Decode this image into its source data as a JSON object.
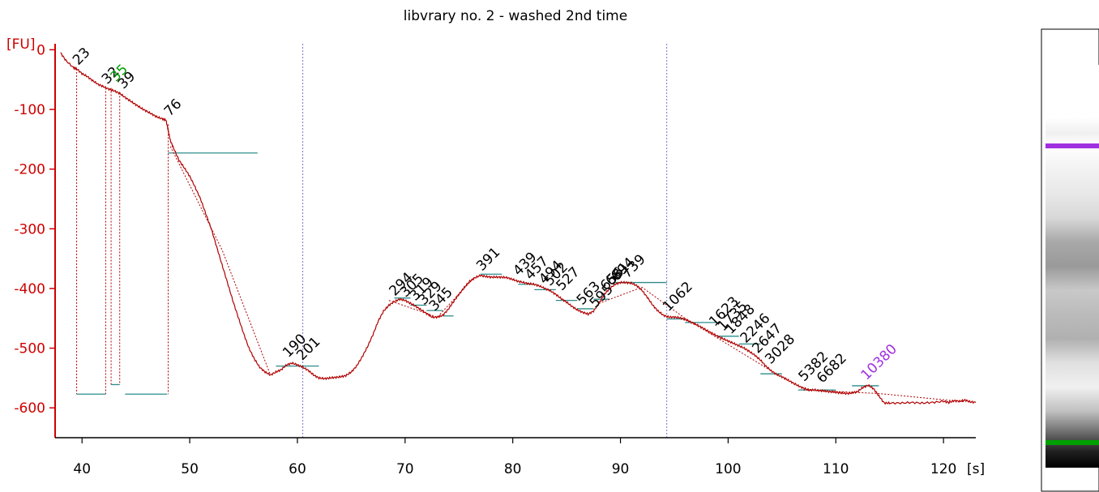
{
  "chart_data": {
    "type": "line",
    "title": "libvrary no. 2 - washed 2nd time",
    "xlabel": "[s]",
    "ylabel": "[FU]",
    "xlim": [
      37.5,
      123
    ],
    "ylim": [
      -650,
      10
    ],
    "x_ticks": [
      40,
      50,
      60,
      70,
      80,
      90,
      100,
      110,
      120
    ],
    "x_tick_labels": [
      "40",
      "50",
      "60",
      "70",
      "80",
      "90",
      "100",
      "110",
      "120"
    ],
    "y_ticks": [
      0,
      -100,
      -200,
      -300,
      -400,
      -500,
      -600
    ],
    "y_tick_labels": [
      "0",
      "-100",
      "-200",
      "-300",
      "-400",
      "-500",
      "-600"
    ],
    "marker_lines_x": [
      60.5,
      94.3
    ],
    "colors": {
      "trace": "#b00000",
      "axis": "#d00000",
      "baseline": "#2e8b8b",
      "marker": "#7777cc",
      "lower_marker": "#00a000",
      "upper_marker": "#a030e0"
    },
    "series": [
      {
        "values": [
          [
            38.0,
            -5
          ],
          [
            38.5,
            -18
          ],
          [
            39.2,
            -30
          ],
          [
            39.5,
            -32
          ],
          [
            40,
            -40
          ],
          [
            40.5,
            -45
          ],
          [
            41,
            -52
          ],
          [
            41.5,
            -58
          ],
          [
            42,
            -62
          ],
          [
            42.5,
            -66
          ],
          [
            43,
            -69
          ],
          [
            43.5,
            -73
          ],
          [
            44,
            -80
          ],
          [
            44.5,
            -86
          ],
          [
            45,
            -92
          ],
          [
            45.5,
            -98
          ],
          [
            46,
            -103
          ],
          [
            46.5,
            -108
          ],
          [
            47,
            -113
          ],
          [
            47.5,
            -116
          ],
          [
            47.8,
            -118
          ],
          [
            48.0,
            -135
          ],
          [
            48.2,
            -152
          ],
          [
            48.5,
            -165
          ],
          [
            49,
            -185
          ],
          [
            49.5,
            -198
          ],
          [
            50,
            -212
          ],
          [
            50.5,
            -230
          ],
          [
            51,
            -250
          ],
          [
            51.5,
            -275
          ],
          [
            52,
            -300
          ],
          [
            52.5,
            -330
          ],
          [
            53,
            -360
          ],
          [
            53.5,
            -390
          ],
          [
            54,
            -420
          ],
          [
            54.5,
            -448
          ],
          [
            55,
            -475
          ],
          [
            55.5,
            -500
          ],
          [
            56,
            -518
          ],
          [
            56.5,
            -532
          ],
          [
            57,
            -540
          ],
          [
            57.5,
            -545
          ],
          [
            58,
            -540
          ],
          [
            58.5,
            -536
          ],
          [
            59,
            -528
          ],
          [
            59.5,
            -525
          ],
          [
            60,
            -528
          ],
          [
            60.5,
            -532
          ],
          [
            61,
            -537
          ],
          [
            61.5,
            -545
          ],
          [
            62,
            -550
          ],
          [
            62.5,
            -551
          ],
          [
            63,
            -550
          ],
          [
            63.5,
            -549
          ],
          [
            64,
            -548
          ],
          [
            64.5,
            -546
          ],
          [
            65,
            -540
          ],
          [
            65.5,
            -530
          ],
          [
            66,
            -515
          ],
          [
            66.5,
            -498
          ],
          [
            67,
            -478
          ],
          [
            67.5,
            -455
          ],
          [
            68,
            -438
          ],
          [
            68.5,
            -428
          ],
          [
            69,
            -422
          ],
          [
            69.5,
            -418
          ],
          [
            70,
            -420
          ],
          [
            70.5,
            -425
          ],
          [
            71,
            -430
          ],
          [
            71.5,
            -436
          ],
          [
            72,
            -442
          ],
          [
            72.5,
            -448
          ],
          [
            73,
            -448
          ],
          [
            73.5,
            -445
          ],
          [
            74,
            -435
          ],
          [
            74.5,
            -422
          ],
          [
            75,
            -410
          ],
          [
            75.5,
            -398
          ],
          [
            76,
            -388
          ],
          [
            76.5,
            -382
          ],
          [
            77,
            -378
          ],
          [
            77.5,
            -380
          ],
          [
            78,
            -381
          ],
          [
            78.5,
            -381
          ],
          [
            79,
            -381
          ],
          [
            79.5,
            -382
          ],
          [
            80,
            -385
          ],
          [
            80.5,
            -388
          ],
          [
            81,
            -390
          ],
          [
            81.5,
            -392
          ],
          [
            82,
            -393
          ],
          [
            82.5,
            -396
          ],
          [
            83,
            -400
          ],
          [
            83.5,
            -404
          ],
          [
            84,
            -410
          ],
          [
            84.5,
            -417
          ],
          [
            85,
            -423
          ],
          [
            85.5,
            -430
          ],
          [
            86,
            -436
          ],
          [
            86.5,
            -440
          ],
          [
            87,
            -443
          ],
          [
            87.5,
            -438
          ],
          [
            88,
            -425
          ],
          [
            88.5,
            -410
          ],
          [
            89,
            -400
          ],
          [
            89.5,
            -393
          ],
          [
            90,
            -390
          ],
          [
            90.5,
            -390
          ],
          [
            91,
            -391
          ],
          [
            91.5,
            -395
          ],
          [
            92,
            -403
          ],
          [
            92.5,
            -415
          ],
          [
            93,
            -428
          ],
          [
            93.5,
            -438
          ],
          [
            94,
            -445
          ],
          [
            94.5,
            -448
          ],
          [
            95,
            -448
          ],
          [
            95.5,
            -449
          ],
          [
            96,
            -452
          ],
          [
            96.5,
            -456
          ],
          [
            97,
            -460
          ],
          [
            97.5,
            -465
          ],
          [
            98,
            -470
          ],
          [
            98.5,
            -475
          ],
          [
            99,
            -480
          ],
          [
            99.5,
            -484
          ],
          [
            100,
            -488
          ],
          [
            100.5,
            -492
          ],
          [
            101,
            -496
          ],
          [
            101.5,
            -500
          ],
          [
            102,
            -506
          ],
          [
            102.5,
            -512
          ],
          [
            103,
            -520
          ],
          [
            103.5,
            -530
          ],
          [
            104,
            -538
          ],
          [
            104.5,
            -544
          ],
          [
            105,
            -548
          ],
          [
            105.5,
            -553
          ],
          [
            106,
            -558
          ],
          [
            106.5,
            -563
          ],
          [
            107,
            -567
          ],
          [
            107.5,
            -570
          ],
          [
            108,
            -570
          ],
          [
            108.5,
            -571
          ],
          [
            109,
            -572
          ],
          [
            109.5,
            -573
          ],
          [
            110,
            -574
          ],
          [
            110.5,
            -575
          ],
          [
            111,
            -576
          ],
          [
            111.5,
            -575
          ],
          [
            112,
            -573
          ],
          [
            112.5,
            -566
          ],
          [
            113,
            -562
          ],
          [
            113.5,
            -568
          ],
          [
            114,
            -580
          ],
          [
            114.5,
            -592
          ],
          [
            115,
            -592
          ],
          [
            116,
            -592
          ],
          [
            117,
            -591
          ],
          [
            118,
            -592
          ],
          [
            119,
            -591
          ],
          [
            120,
            -589
          ],
          [
            120.5,
            -591
          ],
          [
            121,
            -588
          ],
          [
            121.5,
            -589
          ],
          [
            122,
            -587
          ],
          [
            122.5,
            -590
          ],
          [
            123,
            -591
          ]
        ]
      }
    ],
    "dotted_fits": [
      [
        [
          48.2,
          -162
        ],
        [
          53,
          -335
        ],
        [
          57.5,
          -545
        ]
      ],
      [
        [
          68.5,
          -420
        ],
        [
          73,
          -448
        ],
        [
          76.5,
          -380
        ]
      ],
      [
        [
          88,
          -425
        ],
        [
          92,
          -398
        ],
        [
          96,
          -450
        ],
        [
          104,
          -538
        ]
      ],
      [
        [
          107,
          -570
        ],
        [
          114,
          -576
        ],
        [
          122,
          -590
        ]
      ]
    ],
    "baselines": [
      [
        39.5,
        42.2,
        -577
      ],
      [
        42.7,
        43.5,
        -561
      ],
      [
        44,
        47.9,
        -577
      ],
      [
        48,
        56.3,
        -173
      ],
      [
        58,
        62,
        -530
      ],
      [
        69,
        70.5,
        -416
      ],
      [
        70.5,
        72,
        -428
      ],
      [
        72,
        73.5,
        -437
      ],
      [
        73.5,
        74.5,
        -446
      ],
      [
        77,
        79,
        -376
      ],
      [
        80.5,
        82,
        -393
      ],
      [
        82,
        84,
        -402
      ],
      [
        84,
        86,
        -420
      ],
      [
        86,
        87.5,
        -434
      ],
      [
        87.5,
        89,
        -418
      ],
      [
        89.5,
        94.3,
        -390
      ],
      [
        94.3,
        96,
        -451
      ],
      [
        96,
        99,
        -457
      ],
      [
        99,
        101,
        -480
      ],
      [
        101,
        103,
        -493
      ],
      [
        103,
        105,
        -543
      ],
      [
        106.5,
        108,
        -570
      ],
      [
        108.5,
        110,
        -570
      ],
      [
        111.5,
        114,
        -563
      ]
    ],
    "drop_lines": [
      [
        39.5,
        -32,
        -577
      ],
      [
        42.2,
        -64,
        -577
      ],
      [
        42.7,
        -64,
        -561
      ],
      [
        43.5,
        -72,
        -561
      ],
      [
        48,
        -125,
        -577
      ]
    ],
    "peaks": [
      {
        "label": "23",
        "x": 39.5,
        "y": -32
      },
      {
        "label": "32",
        "x": 42.2,
        "y": -64
      },
      {
        "label": "35",
        "x": 43.0,
        "y": -60,
        "lower_marker": true
      },
      {
        "label": "39",
        "x": 43.7,
        "y": -72
      },
      {
        "label": "76",
        "x": 48.0,
        "y": -118
      },
      {
        "label": "190",
        "x": 59.0,
        "y": -522
      },
      {
        "label": "201",
        "x": 60.3,
        "y": -527
      },
      {
        "label": "294",
        "x": 68.9,
        "y": -419
      },
      {
        "label": "305",
        "x": 69.9,
        "y": -421
      },
      {
        "label": "319",
        "x": 70.8,
        "y": -427
      },
      {
        "label": "329",
        "x": 71.6,
        "y": -434
      },
      {
        "label": "345",
        "x": 72.6,
        "y": -444
      },
      {
        "label": "391",
        "x": 77.0,
        "y": -377
      },
      {
        "label": "439",
        "x": 80.4,
        "y": -385
      },
      {
        "label": "457",
        "x": 81.5,
        "y": -392
      },
      {
        "label": "494",
        "x": 82.8,
        "y": -399
      },
      {
        "label": "502",
        "x": 83.3,
        "y": -402
      },
      {
        "label": "527",
        "x": 84.4,
        "y": -410
      },
      {
        "label": "563",
        "x": 86.3,
        "y": -434
      },
      {
        "label": "595",
        "x": 87.5,
        "y": -439
      },
      {
        "label": "656",
        "x": 88.5,
        "y": -410
      },
      {
        "label": "681",
        "x": 89.0,
        "y": -402
      },
      {
        "label": "694",
        "x": 89.5,
        "y": -394
      },
      {
        "label": "739",
        "x": 90.5,
        "y": -389
      },
      {
        "label": "1062",
        "x": 94.3,
        "y": -445
      },
      {
        "label": "1623",
        "x": 98.6,
        "y": -470
      },
      {
        "label": "1735",
        "x": 99.4,
        "y": -478
      },
      {
        "label": "1848",
        "x": 100.1,
        "y": -483
      },
      {
        "label": "2246",
        "x": 101.5,
        "y": -498
      },
      {
        "label": "2647",
        "x": 102.6,
        "y": -515
      },
      {
        "label": "3028",
        "x": 103.8,
        "y": -533
      },
      {
        "label": "5382",
        "x": 106.9,
        "y": -562
      },
      {
        "label": "6682",
        "x": 108.6,
        "y": -565
      },
      {
        "label": "10380",
        "x": 112.7,
        "y": -560,
        "upper_marker": true
      }
    ]
  },
  "gel_lane": {
    "upper_marker_color": "#a030e0",
    "lower_marker_color": "#00a000"
  }
}
